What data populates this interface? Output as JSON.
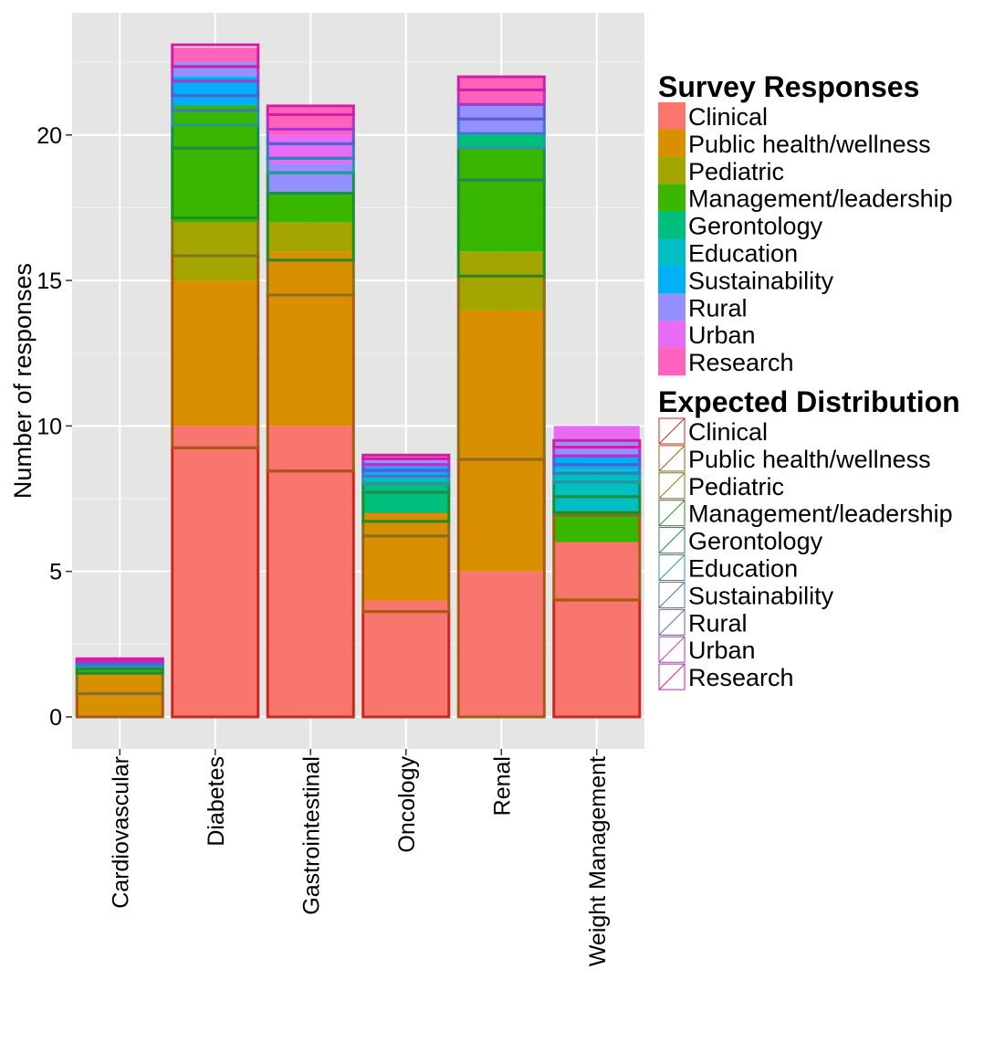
{
  "chart_data": {
    "type": "bar",
    "stacked": true,
    "title": "",
    "xlabel": "",
    "ylabel": "Number of responses",
    "ylim": [
      -1.1,
      24.2
    ],
    "y_ticks": [
      0,
      5,
      10,
      15,
      20
    ],
    "y_tick_labels": [
      "0",
      "5",
      "10",
      "15",
      "20"
    ],
    "x_tick_label_rotation": -90,
    "grid": true,
    "panel_background": "#E5E5E5",
    "legend_position": "right",
    "categories": [
      "Cardiovascular",
      "Diabetes",
      "Gastrointestinal",
      "Oncology",
      "Renal",
      "Weight Management"
    ],
    "survey_responses": {
      "legend_title": "Survey Responses",
      "series": [
        {
          "name": "Clinical",
          "color": "#F8766D",
          "values": [
            0,
            10,
            10,
            4,
            5,
            6
          ]
        },
        {
          "name": "Public health/wellness",
          "color": "#D89000",
          "values": [
            1.5,
            5,
            6,
            3,
            9,
            0
          ]
        },
        {
          "name": "Pediatric",
          "color": "#A3A500",
          "values": [
            0,
            2,
            1,
            0,
            2,
            0
          ]
        },
        {
          "name": "Management/leadership",
          "color": "#39B600",
          "values": [
            0.2,
            4,
            1,
            0,
            3.5,
            1
          ]
        },
        {
          "name": "Gerontology",
          "color": "#00BF7D",
          "values": [
            0.1,
            0,
            0,
            1,
            0.5,
            0
          ]
        },
        {
          "name": "Education",
          "color": "#00BFC4",
          "values": [
            0.1,
            0,
            0,
            0.3,
            0,
            1.5
          ]
        },
        {
          "name": "Sustainability",
          "color": "#00B0F6",
          "values": [
            0.1,
            1,
            0,
            0.3,
            0,
            0.5
          ]
        },
        {
          "name": "Rural",
          "color": "#9590FF",
          "values": [
            0,
            0.5,
            1,
            0.2,
            1,
            0.5
          ]
        },
        {
          "name": "Urban",
          "color": "#E76BF3",
          "values": [
            0,
            0,
            1,
            0.1,
            0,
            0.5
          ]
        },
        {
          "name": "Research",
          "color": "#FF62BC",
          "values": [
            0,
            0.5,
            1,
            0.1,
            1,
            0
          ]
        }
      ]
    },
    "expected_distribution": {
      "legend_title": "Expected Distribution",
      "series": [
        {
          "name": "Clinical",
          "color": "#C8281E",
          "values": [
            0,
            9.25,
            8.45,
            3.62,
            0,
            4.02
          ]
        },
        {
          "name": "Public health/wellness",
          "color": "#A85A14",
          "values": [
            0.8,
            6.6,
            6.05,
            2.6,
            8.85,
            2.9
          ]
        },
        {
          "name": "Pediatric",
          "color": "#8A6E1E",
          "values": [
            0.7,
            1.3,
            1.2,
            0.5,
            6.3,
            0.1
          ]
        },
        {
          "name": "Management/leadership",
          "color": "#1E8C28",
          "values": [
            0.15,
            2.4,
            2.3,
            1.0,
            3.3,
            0.55
          ]
        },
        {
          "name": "Gerontology",
          "color": "#1E8C50",
          "values": [
            0.1,
            0.8,
            0.7,
            0.3,
            1.1,
            0.5
          ]
        },
        {
          "name": "Education",
          "color": "#2896A0",
          "values": [
            0.05,
            0.5,
            0.5,
            0.25,
            0.5,
            0.3
          ]
        },
        {
          "name": "Sustainability",
          "color": "#3C78C8",
          "values": [
            0.05,
            0.5,
            0.5,
            0.2,
            0.5,
            0.3
          ]
        },
        {
          "name": "Rural",
          "color": "#5A5AD2",
          "values": [
            0.05,
            0.5,
            0.5,
            0.2,
            0.5,
            0.3
          ]
        },
        {
          "name": "Urban",
          "color": "#B432C8",
          "values": [
            0.05,
            0.5,
            0.5,
            0.2,
            0.5,
            0.3
          ]
        },
        {
          "name": "Research",
          "color": "#D21EA0",
          "values": [
            0.05,
            0.75,
            0.3,
            0.13,
            0.45,
            0.23
          ]
        }
      ]
    }
  }
}
